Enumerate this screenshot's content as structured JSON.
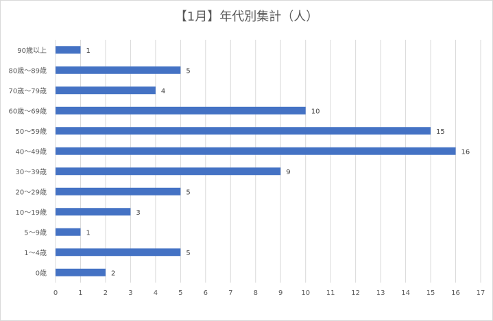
{
  "chart_data": {
    "type": "bar",
    "orientation": "horizontal",
    "title": "【1月】年代別集計（人）",
    "categories": [
      "90歳以上",
      "80歳～89歳",
      "70歳～79歳",
      "60歳～69歳",
      "50～59歳",
      "40～49歳",
      "30～39歳",
      "20～29歳",
      "10～19歳",
      "5～9歳",
      "1～4歳",
      "0歳"
    ],
    "values": [
      1,
      5,
      4,
      10,
      15,
      16,
      9,
      5,
      3,
      1,
      5,
      2
    ],
    "xlim": [
      0,
      17
    ],
    "xticks": [
      0,
      1,
      2,
      3,
      4,
      5,
      6,
      7,
      8,
      9,
      10,
      11,
      12,
      13,
      14,
      15,
      16,
      17
    ],
    "grid": "vertical",
    "legend": "none",
    "bar_color": "#4472c4",
    "grid_color": "#d9d9d9"
  }
}
